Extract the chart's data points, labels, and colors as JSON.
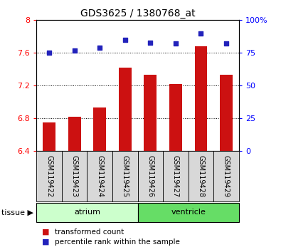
{
  "title": "GDS3625 / 1380768_at",
  "samples": [
    "GSM119422",
    "GSM119423",
    "GSM119424",
    "GSM119425",
    "GSM119426",
    "GSM119427",
    "GSM119428",
    "GSM119429"
  ],
  "transformed_count": [
    6.75,
    6.82,
    6.93,
    7.42,
    7.33,
    7.22,
    7.68,
    7.33
  ],
  "percentile_rank": [
    75,
    77,
    79,
    85,
    83,
    82,
    90,
    82
  ],
  "ylim_left": [
    6.4,
    8.0
  ],
  "ylim_right": [
    0,
    100
  ],
  "yticks_left": [
    6.4,
    6.8,
    7.2,
    7.6,
    8.0
  ],
  "ytick_labels_left": [
    "6.4",
    "6.8",
    "7.2",
    "7.6",
    "8"
  ],
  "yticks_right": [
    0,
    25,
    50,
    75,
    100
  ],
  "ytick_labels_right": [
    "0",
    "25",
    "50",
    "75",
    "100%"
  ],
  "groups": [
    {
      "label": "atrium",
      "indices": [
        0,
        1,
        2,
        3
      ],
      "color": "#ccffcc"
    },
    {
      "label": "ventricle",
      "indices": [
        4,
        5,
        6,
        7
      ],
      "color": "#66dd66"
    }
  ],
  "bar_color": "#cc1111",
  "dot_color": "#2222bb",
  "bar_bottom": 6.4,
  "tissue_label": "tissue",
  "legend_items": [
    {
      "label": "transformed count",
      "color": "#cc1111"
    },
    {
      "label": "percentile rank within the sample",
      "color": "#2222bb"
    }
  ]
}
